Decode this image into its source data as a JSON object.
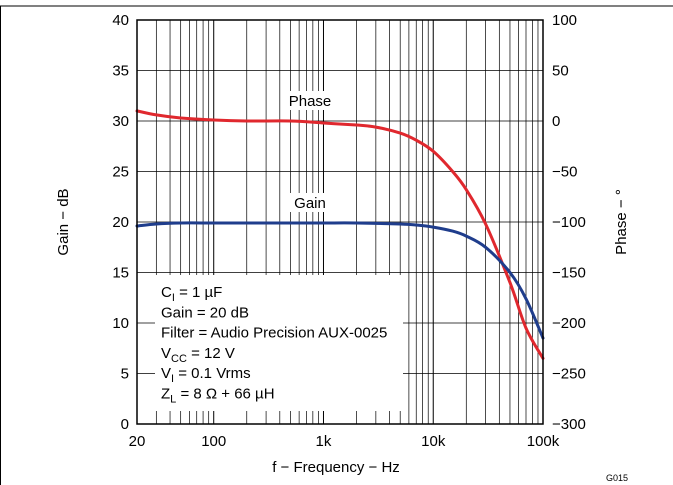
{
  "chart_data": {
    "type": "line",
    "xlabel": "f − Frequency − Hz",
    "ylabel_left": "Gain − dB",
    "ylabel_right": "Phase − °",
    "x_scale": "log",
    "xlim": [
      20,
      100000
    ],
    "ylim_left": [
      0,
      40
    ],
    "ylim_right": [
      -300,
      100
    ],
    "x_ticks": [
      {
        "value": 20,
        "label": "20"
      },
      {
        "value": 100,
        "label": "100"
      },
      {
        "value": 1000,
        "label": "1k"
      },
      {
        "value": 10000,
        "label": "10k"
      },
      {
        "value": 100000,
        "label": "100k"
      }
    ],
    "y_ticks_left": [
      "0",
      "5",
      "10",
      "15",
      "20",
      "25",
      "30",
      "35",
      "40"
    ],
    "y_ticks_right": [
      "−300",
      "−250",
      "−200",
      "−150",
      "−100",
      "−50",
      "0",
      "50",
      "100"
    ],
    "grid": true,
    "series": [
      {
        "name": "Phase",
        "axis": "right",
        "color": "#e0282e",
        "x": [
          20,
          30,
          50,
          100,
          200,
          500,
          1000,
          2000,
          3000,
          5000,
          7000,
          10000,
          15000,
          20000,
          30000,
          50000,
          70000,
          100000
        ],
        "y": [
          10,
          6,
          3,
          1,
          0,
          0,
          -2,
          -4,
          -6,
          -12,
          -19,
          -30,
          -50,
          -68,
          -102,
          -160,
          -205,
          -235
        ]
      },
      {
        "name": "Gain",
        "axis": "left",
        "color": "#1f3d8c",
        "x": [
          20,
          30,
          50,
          100,
          200,
          500,
          1000,
          2000,
          5000,
          7000,
          10000,
          15000,
          20000,
          30000,
          50000,
          70000,
          100000
        ],
        "y": [
          19.6,
          19.8,
          19.9,
          19.9,
          19.9,
          19.9,
          19.9,
          19.9,
          19.8,
          19.7,
          19.5,
          19.1,
          18.6,
          17.5,
          15.0,
          12.4,
          8.5
        ]
      }
    ],
    "annotations": [
      {
        "main": "C",
        "sub": "I",
        "rest": " = 1 µF"
      },
      {
        "main": "Gain = 20 dB",
        "sub": "",
        "rest": ""
      },
      {
        "main": "Filter = Audio Precision AUX-0025",
        "sub": "",
        "rest": ""
      },
      {
        "main": "V",
        "sub": "CC",
        "rest": " = 12 V"
      },
      {
        "main": "V",
        "sub": "I",
        "rest": " = 0.1 Vrms"
      },
      {
        "main": "Z",
        "sub": "L",
        "rest": " = 8 Ω + 66 µH"
      }
    ],
    "figure_id": "G015"
  }
}
